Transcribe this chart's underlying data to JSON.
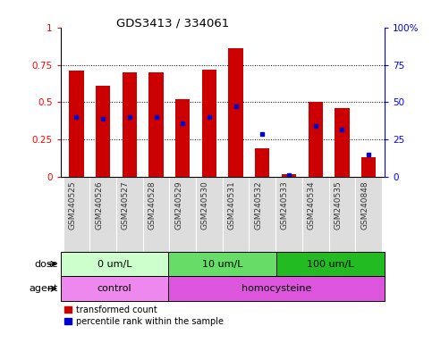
{
  "title": "GDS3413 / 334061",
  "samples": [
    "GSM240525",
    "GSM240526",
    "GSM240527",
    "GSM240528",
    "GSM240529",
    "GSM240530",
    "GSM240531",
    "GSM240532",
    "GSM240533",
    "GSM240534",
    "GSM240535",
    "GSM240848"
  ],
  "red_values": [
    0.71,
    0.61,
    0.7,
    0.7,
    0.52,
    0.72,
    0.86,
    0.19,
    0.02,
    0.5,
    0.46,
    0.13
  ],
  "blue_values": [
    0.4,
    0.39,
    0.4,
    0.4,
    0.36,
    0.4,
    0.47,
    0.29,
    0.01,
    0.34,
    0.32,
    0.15
  ],
  "dose_groups": [
    {
      "label": "0 um/L",
      "start": 0,
      "end": 4,
      "color": "#ccffcc"
    },
    {
      "label": "10 um/L",
      "start": 4,
      "end": 8,
      "color": "#66dd66"
    },
    {
      "label": "100 um/L",
      "start": 8,
      "end": 12,
      "color": "#22bb22"
    }
  ],
  "agent_groups": [
    {
      "label": "control",
      "start": 0,
      "end": 4,
      "color": "#ee88ee"
    },
    {
      "label": "homocysteine",
      "start": 4,
      "end": 12,
      "color": "#dd55dd"
    }
  ],
  "bar_color": "#cc0000",
  "blue_color": "#0000cc",
  "yticks_left": [
    0,
    0.25,
    0.5,
    0.75,
    1.0
  ],
  "yticks_right": [
    0,
    25,
    50,
    75,
    100
  ],
  "ylim": [
    0,
    1.0
  ],
  "legend_red": "transformed count",
  "legend_blue": "percentile rank within the sample",
  "bg_xtick": "#dddddd",
  "plot_facecolor": "#ffffff"
}
